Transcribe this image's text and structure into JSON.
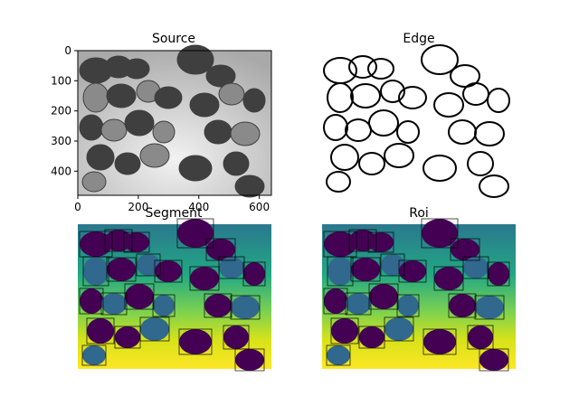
{
  "figure": {
    "panels": [
      {
        "id": "source",
        "title": "Source",
        "axes_visible": true
      },
      {
        "id": "edge",
        "title": "Edge",
        "axes_visible": false
      },
      {
        "id": "segment",
        "title": "Segment",
        "axes_visible": false
      },
      {
        "id": "roi",
        "title": "Roi",
        "axes_visible": false
      }
    ],
    "colors": {
      "source_bg": "#d9d9d9",
      "cell_dark": "#3f3f3f",
      "cell_light": "#8a8a8a",
      "edge_line": "#000000",
      "viridis_low": "#440154",
      "viridis_mid": "#31688e",
      "viridis_teal": "#35b779",
      "viridis_high": "#fde725",
      "box_line": "#000000"
    }
  },
  "chart_data": {
    "type": "image",
    "title": "Source",
    "x_ticks": [
      "0",
      "200",
      "400",
      "600"
    ],
    "y_ticks": [
      "0",
      "100",
      "200",
      "300",
      "400"
    ],
    "xlim": [
      0,
      640
    ],
    "ylim": [
      480,
      0
    ]
  }
}
